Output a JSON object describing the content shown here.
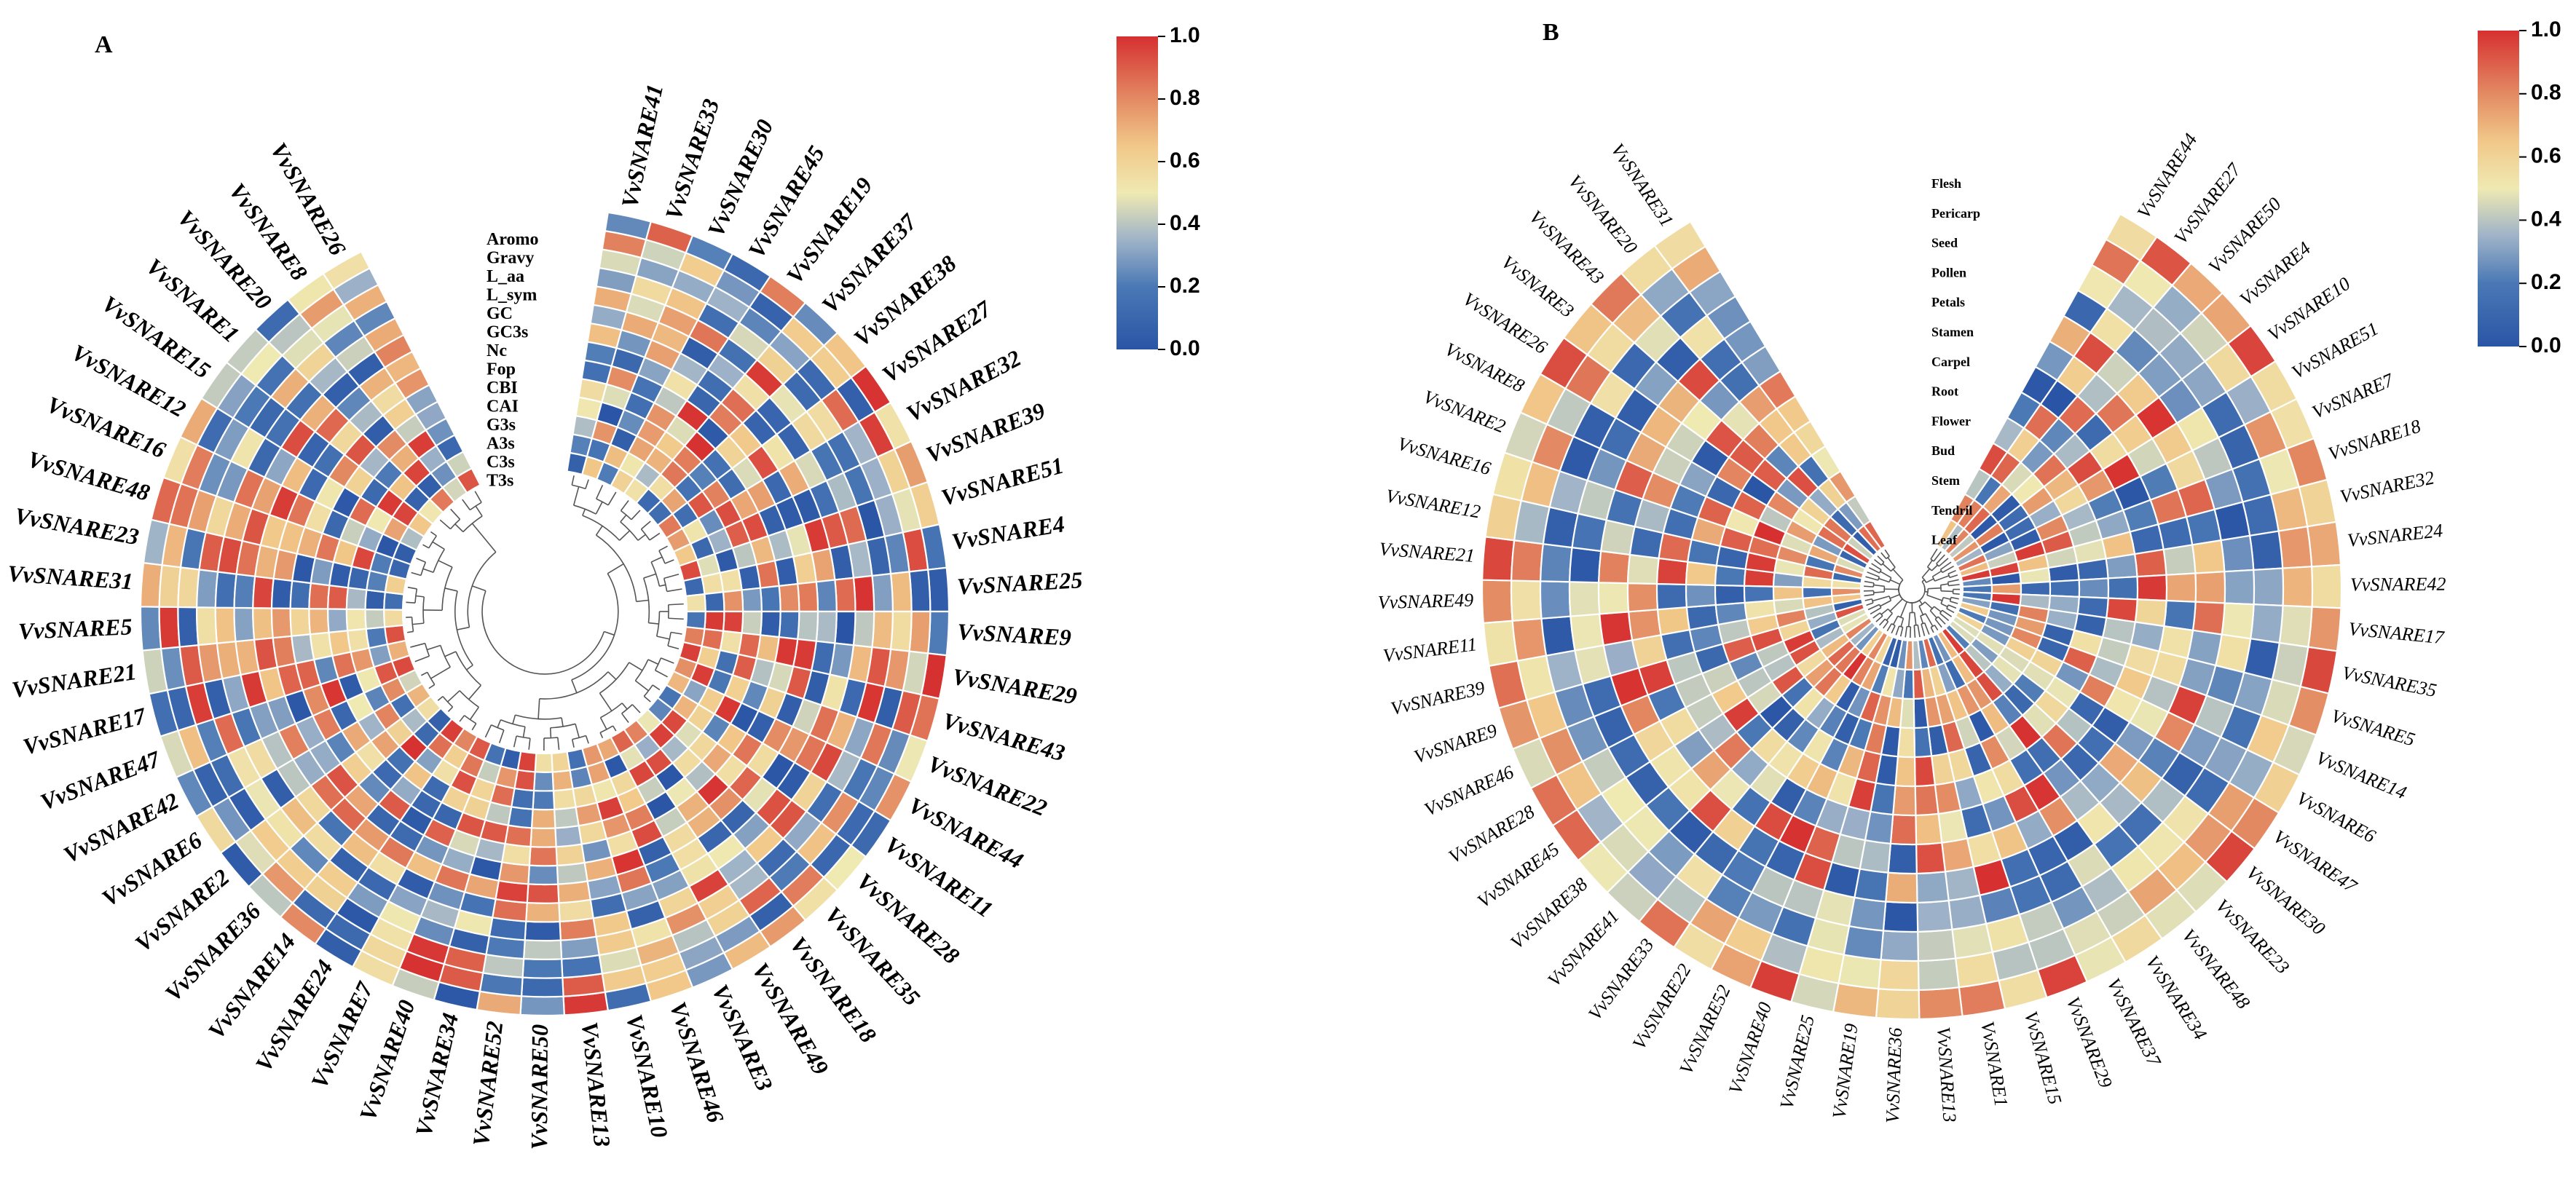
{
  "colors": {
    "low": "#2a55a6",
    "mid": "#efe9b2",
    "high": "#d63030",
    "tree": "#555555"
  },
  "chart_data": [
    {
      "type": "heatmap",
      "panel": "A",
      "title": "",
      "tracks": [
        "Aromo",
        "Gravy",
        "L_aa",
        "L_sym",
        "GC",
        "GC3s",
        "Nc",
        "Fop",
        "CBI",
        "CAI",
        "G3s",
        "A3s",
        "C3s",
        "T3s"
      ],
      "genes": [
        "VvSNARE41",
        "VvSNARE33",
        "VvSNARE30",
        "VvSNARE45",
        "VvSNARE19",
        "VvSNARE37",
        "VvSNARE38",
        "VvSNARE27",
        "VvSNARE32",
        "VvSNARE39",
        "VvSNARE51",
        "VvSNARE4",
        "VvSNARE25",
        "VvSNARE9",
        "VvSNARE29",
        "VvSNARE43",
        "VvSNARE22",
        "VvSNARE44",
        "VvSNARE11",
        "VvSNARE28",
        "VvSNARE35",
        "VvSNARE18",
        "VvSNARE49",
        "VvSNARE3",
        "VvSNARE46",
        "VvSNARE10",
        "VvSNARE13",
        "VvSNARE50",
        "VvSNARE52",
        "VvSNARE34",
        "VvSNARE40",
        "VvSNARE7",
        "VvSNARE24",
        "VvSNARE14",
        "VvSNARE36",
        "VvSNARE2",
        "VvSNARE6",
        "VvSNARE42",
        "VvSNARE47",
        "VvSNARE17",
        "VvSNARE21",
        "VvSNARE5",
        "VvSNARE31",
        "VvSNARE23",
        "VvSNARE48",
        "VvSNARE16",
        "VvSNARE12",
        "VvSNARE15",
        "VvSNARE1",
        "VvSNARE20",
        "VvSNARE8",
        "VvSNARE26"
      ],
      "colorbar": {
        "min": 0.0,
        "max": 1.0,
        "ticks": [
          "0.0",
          "0.2",
          "0.4",
          "0.6",
          "0.8",
          "1.0"
        ]
      },
      "seed": 17
    },
    {
      "type": "heatmap",
      "panel": "B",
      "title": "",
      "tracks": [
        "Flesh",
        "Pericarp",
        "Seed",
        "Pollen",
        "Petals",
        "Stamen",
        "Carpel",
        "Root",
        "Flower",
        "Bud",
        "Stem",
        "Tendril",
        "Leaf"
      ],
      "genes": [
        "VvSNARE44",
        "VvSNARE27",
        "VvSNARE50",
        "VvSNARE4",
        "VvSNARE10",
        "VvSNARE51",
        "VvSNARE7",
        "VvSNARE18",
        "VvSNARE32",
        "VvSNARE24",
        "VvSNARE42",
        "VvSNARE17",
        "VvSNARE35",
        "VvSNARE5",
        "VvSNARE14",
        "VvSNARE6",
        "VvSNARE47",
        "VvSNARE30",
        "VvSNARE23",
        "VvSNARE48",
        "VvSNARE34",
        "VvSNARE37",
        "VvSNARE29",
        "VvSNARE15",
        "VvSNARE1",
        "VvSNARE13",
        "VvSNARE36",
        "VvSNARE19",
        "VvSNARE25",
        "VvSNARE40",
        "VvSNARE52",
        "VvSNARE22",
        "VvSNARE33",
        "VvSNARE41",
        "VvSNARE38",
        "VvSNARE45",
        "VvSNARE28",
        "VvSNARE46",
        "VvSNARE9",
        "VvSNARE39",
        "VvSNARE11",
        "VvSNARE49",
        "VvSNARE21",
        "VvSNARE12",
        "VvSNARE16",
        "VvSNARE2",
        "VvSNARE8",
        "VvSNARE26",
        "VvSNARE3",
        "VvSNARE43",
        "VvSNARE20",
        "VvSNARE31"
      ],
      "colorbar": {
        "min": 0.0,
        "max": 1.0,
        "ticks": [
          "0.0",
          "0.2",
          "0.4",
          "0.6",
          "0.8",
          "1.0"
        ]
      },
      "seed": 41
    }
  ]
}
